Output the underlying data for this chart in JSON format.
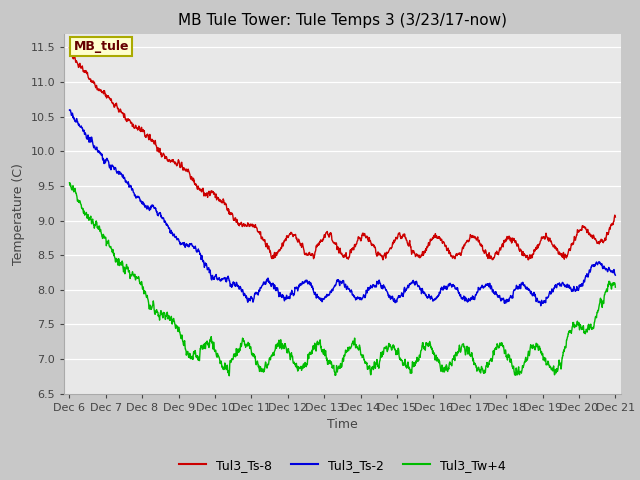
{
  "title": "MB Tule Tower: Tule Temps 3 (3/23/17-now)",
  "xlabel": "Time",
  "ylabel": "Temperature (C)",
  "ylim": [
    6.5,
    11.7
  ],
  "xlim_days": [
    5.85,
    21.15
  ],
  "fig_facecolor": "#c8c8c8",
  "ax_facecolor": "#e8e8e8",
  "series": [
    {
      "label": "Tul3_Ts-8",
      "color": "#cc0000"
    },
    {
      "label": "Tul3_Ts-2",
      "color": "#0000dd"
    },
    {
      "label": "Tul3_Tw+4",
      "color": "#00bb00"
    }
  ],
  "tick_labels": [
    "Dec 6",
    "Dec 7",
    "Dec 8",
    "Dec 9",
    "Dec 10",
    "Dec 11",
    "Dec 12",
    "Dec 13",
    "Dec 14",
    "Dec 15",
    "Dec 16",
    "Dec 17",
    "Dec 18",
    "Dec 19",
    "Dec 20",
    "Dec 21"
  ],
  "tick_positions": [
    6,
    7,
    8,
    9,
    10,
    11,
    12,
    13,
    14,
    15,
    16,
    17,
    18,
    19,
    20,
    21
  ],
  "yticks": [
    6.5,
    7.0,
    7.5,
    8.0,
    8.5,
    9.0,
    9.5,
    10.0,
    10.5,
    11.0,
    11.5
  ],
  "mb_tule_label": "MB_tule",
  "title_fontsize": 11,
  "axis_label_fontsize": 9,
  "tick_fontsize": 8,
  "legend_fontsize": 9
}
